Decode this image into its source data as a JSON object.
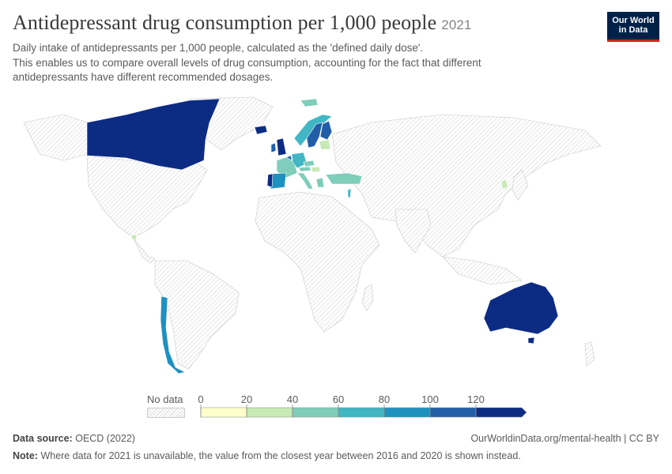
{
  "header": {
    "title": "Antidepressant drug consumption per 1,000 people",
    "year": "2021",
    "subtitle_line1": "Daily intake of antidepressants per 1,000 people, calculated as the 'defined daily dose'.",
    "subtitle_line2": "This enables us to compare overall levels of drug consumption, accounting for the fact that different",
    "subtitle_line3": "antidepressants have different recommended dosages."
  },
  "logo": {
    "line1": "Our World",
    "line2": "in Data"
  },
  "legend": {
    "no_data_label": "No data",
    "ticks": [
      "0",
      "20",
      "40",
      "60",
      "80",
      "100",
      "120"
    ],
    "bins": [
      {
        "from": 0,
        "to": 20,
        "color": "#ffffcc"
      },
      {
        "from": 20,
        "to": 40,
        "color": "#c7e9b4"
      },
      {
        "from": 40,
        "to": 60,
        "color": "#7fcdbb"
      },
      {
        "from": 60,
        "to": 80,
        "color": "#41b6c4"
      },
      {
        "from": 80,
        "to": 100,
        "color": "#1d91c0"
      },
      {
        "from": 100,
        "to": 120,
        "color": "#225ea8"
      },
      {
        "from": 120,
        "to": null,
        "color": "#0c2c84"
      }
    ]
  },
  "colors": {
    "no_data_fill": "#f0f0f0",
    "border": "#bdbdbd",
    "ocean": "#ffffff"
  },
  "footer": {
    "source_label": "Data source:",
    "source_value": "OECD (2022)",
    "url": "OurWorldinData.org/mental-health | CC BY",
    "note_label": "Note:",
    "note_text": "Where data for 2021 is unavailable, the value from the closest year between 2016 and 2020 is shown instead."
  },
  "map_regions": [
    {
      "name": "Canada",
      "color": "#0c2c84"
    },
    {
      "name": "United States",
      "color": "nodata"
    },
    {
      "name": "Iceland",
      "color": "#0c2c84"
    },
    {
      "name": "United Kingdom",
      "color": "#0c2c84"
    },
    {
      "name": "Ireland",
      "color": "#225ea8"
    },
    {
      "name": "Portugal",
      "color": "#0c2c84"
    },
    {
      "name": "Spain",
      "color": "#1d91c0"
    },
    {
      "name": "France",
      "color": "#7fcdbb"
    },
    {
      "name": "Belgium",
      "color": "#225ea8"
    },
    {
      "name": "Germany",
      "color": "#41b6c4"
    },
    {
      "name": "Norway",
      "color": "#41b6c4"
    },
    {
      "name": "Sweden",
      "color": "#225ea8"
    },
    {
      "name": "Finland",
      "color": "#225ea8"
    },
    {
      "name": "Estonia",
      "color": "#c7e9b4"
    },
    {
      "name": "Latvia",
      "color": "#c7e9b4"
    },
    {
      "name": "Lithuania",
      "color": "#c7e9b4"
    },
    {
      "name": "Poland",
      "color": "nodata"
    },
    {
      "name": "Czechia",
      "color": "#7fcdbb"
    },
    {
      "name": "Austria",
      "color": "#7fcdbb"
    },
    {
      "name": "Hungary",
      "color": "#c7e9b4"
    },
    {
      "name": "Slovenia",
      "color": "#7fcdbb"
    },
    {
      "name": "Italy",
      "color": "#7fcdbb"
    },
    {
      "name": "Greece",
      "color": "#7fcdbb"
    },
    {
      "name": "Turkey",
      "color": "#7fcdbb"
    },
    {
      "name": "Israel",
      "color": "#41b6c4"
    },
    {
      "name": "South Korea",
      "color": "#c7e9b4"
    },
    {
      "name": "Costa Rica",
      "color": "#c7e9b4"
    },
    {
      "name": "Chile",
      "color": "#1d91c0"
    },
    {
      "name": "Australia",
      "color": "#0c2c84"
    },
    {
      "name": "Svalbard",
      "color": "#7fcdbb"
    }
  ]
}
